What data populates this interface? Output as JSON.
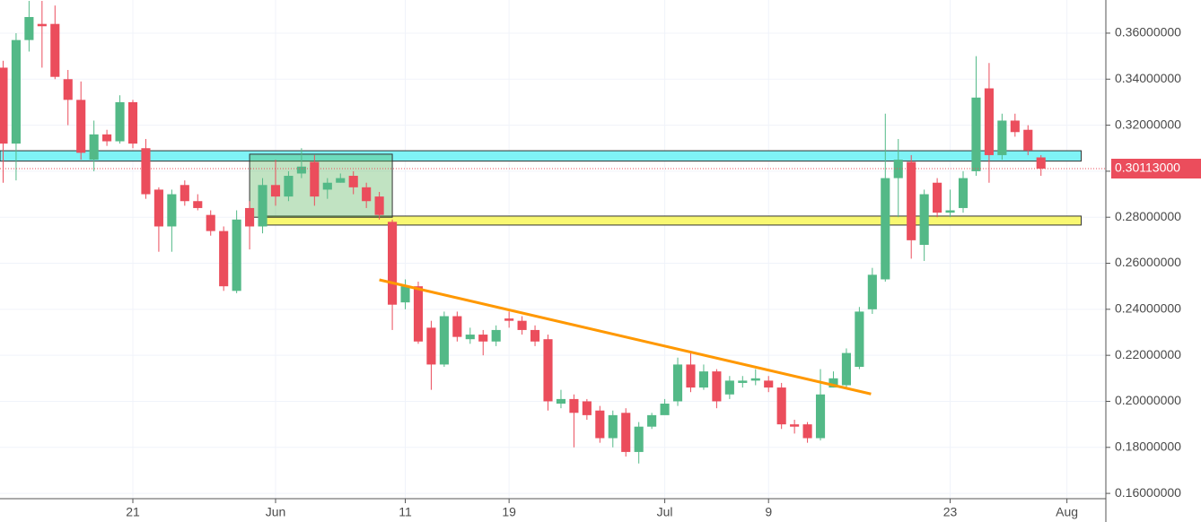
{
  "chart_data": {
    "type": "candlestick",
    "open": [
      0.345,
      0.312,
      0.357,
      0.364,
      0.364,
      0.34,
      0.331,
      0.305,
      0.316,
      0.313,
      0.33,
      0.31,
      0.292,
      0.276,
      0.294,
      0.287,
      0.281,
      0.274,
      0.248,
      0.284,
      0.276,
      0.294,
      0.289,
      0.299,
      0.304,
      0.292,
      0.295,
      0.298,
      0.293,
      0.289,
      0.278,
      0.243,
      0.25,
      0.232,
      0.216,
      0.237,
      0.227,
      0.229,
      0.226,
      0.236,
      0.235,
      0.231,
      0.227,
      0.199,
      0.201,
      0.2,
      0.196,
      0.184,
      0.195,
      0.178,
      0.189,
      0.194,
      0.2,
      0.216,
      0.206,
      0.213,
      0.203,
      0.208,
      0.209,
      0.209,
      0.206,
      0.19,
      0.19,
      0.184,
      0.206,
      0.207,
      0.215,
      0.24,
      0.253,
      0.297,
      0.304,
      0.268,
      0.295,
      0.282,
      0.284,
      0.3,
      0.336,
      0.307,
      0.322,
      0.318,
      0.306
    ],
    "high": [
      0.348,
      0.36,
      0.374,
      0.374,
      0.372,
      0.344,
      0.339,
      0.322,
      0.318,
      0.333,
      0.331,
      0.314,
      0.293,
      0.292,
      0.296,
      0.29,
      0.283,
      0.276,
      0.283,
      0.287,
      0.297,
      0.305,
      0.3,
      0.31,
      0.307,
      0.297,
      0.299,
      0.3,
      0.295,
      0.291,
      0.279,
      0.253,
      0.252,
      0.235,
      0.239,
      0.239,
      0.232,
      0.231,
      0.233,
      0.239,
      0.237,
      0.233,
      0.229,
      0.205,
      0.203,
      0.201,
      0.198,
      0.196,
      0.197,
      0.191,
      0.195,
      0.201,
      0.219,
      0.221,
      0.216,
      0.214,
      0.211,
      0.211,
      0.214,
      0.211,
      0.208,
      0.192,
      0.191,
      0.214,
      0.213,
      0.223,
      0.241,
      0.258,
      0.325,
      0.314,
      0.307,
      0.292,
      0.297,
      0.292,
      0.3,
      0.35,
      0.347,
      0.325,
      0.325,
      0.32,
      0.307
    ],
    "low": [
      0.295,
      0.296,
      0.352,
      0.345,
      0.34,
      0.32,
      0.305,
      0.3,
      0.311,
      0.312,
      0.31,
      0.288,
      0.265,
      0.265,
      0.285,
      0.283,
      0.272,
      0.248,
      0.247,
      0.266,
      0.273,
      0.285,
      0.287,
      0.297,
      0.285,
      0.288,
      0.295,
      0.29,
      0.284,
      0.279,
      0.231,
      0.24,
      0.225,
      0.205,
      0.215,
      0.226,
      0.225,
      0.22,
      0.224,
      0.232,
      0.229,
      0.224,
      0.196,
      0.197,
      0.18,
      0.192,
      0.182,
      0.18,
      0.176,
      0.173,
      0.188,
      0.196,
      0.198,
      0.204,
      0.205,
      0.197,
      0.201,
      0.206,
      0.207,
      0.204,
      0.188,
      0.186,
      0.182,
      0.183,
      0.206,
      0.206,
      0.214,
      0.238,
      0.252,
      0.28,
      0.262,
      0.261,
      0.28,
      0.28,
      0.282,
      0.298,
      0.295,
      0.305,
      0.315,
      0.307,
      0.298
    ],
    "close": [
      0.312,
      0.357,
      0.367,
      0.363,
      0.341,
      0.331,
      0.308,
      0.316,
      0.313,
      0.33,
      0.312,
      0.29,
      0.276,
      0.29,
      0.287,
      0.284,
      0.274,
      0.25,
      0.279,
      0.276,
      0.294,
      0.289,
      0.298,
      0.302,
      0.289,
      0.295,
      0.297,
      0.293,
      0.287,
      0.281,
      0.242,
      0.25,
      0.226,
      0.216,
      0.237,
      0.228,
      0.229,
      0.226,
      0.231,
      0.235,
      0.231,
      0.226,
      0.2,
      0.201,
      0.195,
      0.194,
      0.184,
      0.194,
      0.178,
      0.189,
      0.194,
      0.199,
      0.216,
      0.206,
      0.213,
      0.2,
      0.209,
      0.209,
      0.21,
      0.206,
      0.19,
      0.189,
      0.184,
      0.203,
      0.21,
      0.221,
      0.239,
      0.255,
      0.297,
      0.305,
      0.27,
      0.29,
      0.282,
      0.283,
      0.297,
      0.332,
      0.307,
      0.322,
      0.317,
      0.309,
      0.30113
    ],
    "up_color": "#53b987",
    "down_color": "#eb4d5c",
    "xlim": [
      -0.24,
      85.0
    ],
    "xticks": [
      {
        "value": 10,
        "label": "21"
      },
      {
        "value": 21,
        "label": "Jun"
      },
      {
        "value": 31,
        "label": "11"
      },
      {
        "value": 39,
        "label": "19"
      },
      {
        "value": 51,
        "label": "Jul"
      },
      {
        "value": 59,
        "label": "9"
      },
      {
        "value": 73,
        "label": "23"
      },
      {
        "value": 82,
        "label": "Aug"
      }
    ],
    "ylim": [
      0.1577,
      0.3744
    ],
    "yticks": [
      {
        "value": 0.16,
        "label": "0.16000000"
      },
      {
        "value": 0.18,
        "label": "0.18000000"
      },
      {
        "value": 0.2,
        "label": "0.20000000"
      },
      {
        "value": 0.22,
        "label": "0.22000000"
      },
      {
        "value": 0.24,
        "label": "0.24000000"
      },
      {
        "value": 0.26,
        "label": "0.26000000"
      },
      {
        "value": 0.28,
        "label": "0.28000000"
      },
      {
        "value": 0.3,
        "label": "0.30000000"
      },
      {
        "value": 0.32,
        "label": "0.32000000"
      },
      {
        "value": 0.34,
        "label": "0.34000000"
      },
      {
        "value": 0.36,
        "label": "0.36000000"
      }
    ],
    "grid": true,
    "zones": [
      {
        "color": "#7ff3f6",
        "from": -0.24,
        "to": 83.1,
        "low": 0.3044,
        "high": 0.3089
      },
      {
        "color": "#f9f871",
        "from": 20.1,
        "to": 83.1,
        "low": 0.2766,
        "high": 0.2805
      },
      {
        "color": "rgba(76,175,80,0.35)",
        "from": 19,
        "to": 30,
        "low": 0.28,
        "high": 0.3074
      }
    ],
    "trendline": {
      "color": "#ff9800",
      "x": [
        29,
        66.9
      ],
      "y": [
        0.2528,
        0.2032
      ]
    },
    "last_price": {
      "value": 0.30113,
      "label": "0.30113000",
      "color": "#eb4d5c"
    }
  }
}
